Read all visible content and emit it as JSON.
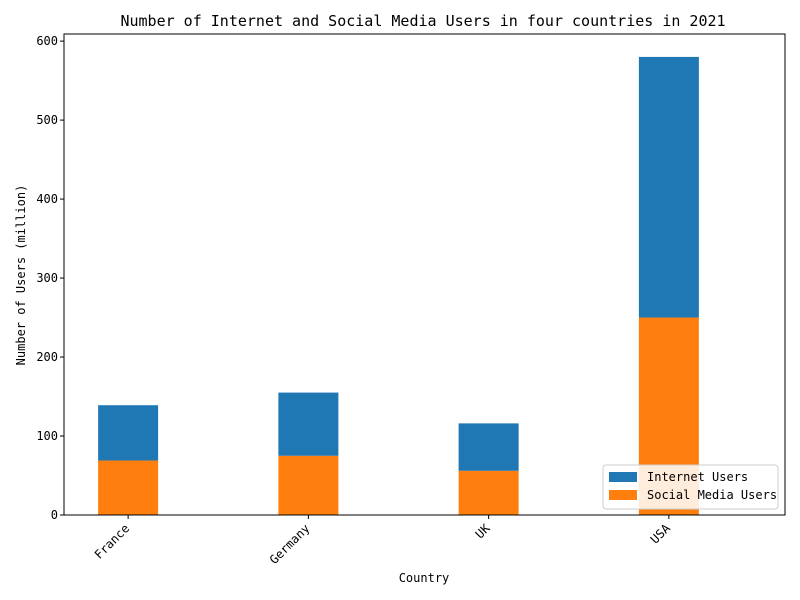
{
  "chart_data": {
    "type": "bar",
    "stacked": true,
    "title": "Number of Internet and Social Media Users in four countries in 2021",
    "xlabel": "Country",
    "ylabel": "Number of Users (million)",
    "categories": [
      "France",
      "Germany",
      "UK",
      "USA"
    ],
    "series": [
      {
        "name": "Social Media Users",
        "values": [
          69,
          75,
          56,
          250
        ],
        "color": "#ff7f0e"
      },
      {
        "name": "Internet Users",
        "values": [
          70,
          80,
          60,
          330
        ],
        "color": "#1f77b4"
      }
    ],
    "ylim": [
      0,
      609
    ],
    "yticks": [
      0,
      100,
      200,
      300,
      400,
      500,
      600
    ],
    "legend": {
      "position": "bottom-right",
      "order": [
        "Internet Users",
        "Social Media Users"
      ]
    },
    "grid": false
  }
}
